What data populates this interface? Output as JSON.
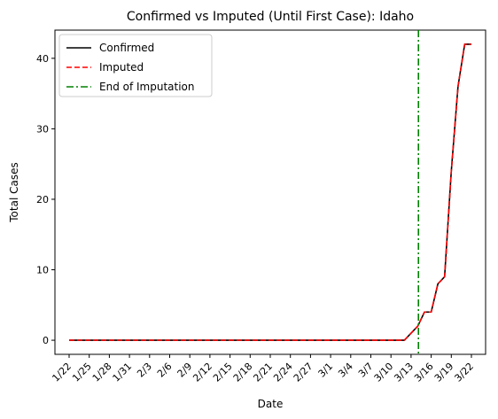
{
  "chart_data": {
    "type": "line",
    "title": "Confirmed vs Imputed (Until First Case): Idaho",
    "xlabel": "Date",
    "ylabel": "Total Cases",
    "ylim": [
      -2,
      44
    ],
    "yticks": [
      0,
      10,
      20,
      30,
      40
    ],
    "grid": false,
    "legend_position": "top-left",
    "x": [
      "1/22",
      "1/23",
      "1/24",
      "1/25",
      "1/26",
      "1/27",
      "1/28",
      "1/29",
      "1/30",
      "1/31",
      "2/1",
      "2/2",
      "2/3",
      "2/4",
      "2/5",
      "2/6",
      "2/7",
      "2/8",
      "2/9",
      "2/10",
      "2/11",
      "2/12",
      "2/13",
      "2/14",
      "2/15",
      "2/16",
      "2/17",
      "2/18",
      "2/19",
      "2/20",
      "2/21",
      "2/22",
      "2/23",
      "2/24",
      "2/25",
      "2/26",
      "2/27",
      "2/28",
      "2/29",
      "3/1",
      "3/2",
      "3/3",
      "3/4",
      "3/5",
      "3/6",
      "3/7",
      "3/8",
      "3/9",
      "3/10",
      "3/11",
      "3/12",
      "3/13",
      "3/14",
      "3/15",
      "3/16",
      "3/17",
      "3/18",
      "3/19",
      "3/20",
      "3/21",
      "3/22"
    ],
    "xtick_labels": [
      "1/22",
      "1/25",
      "1/28",
      "1/31",
      "2/3",
      "2/6",
      "2/9",
      "2/12",
      "2/15",
      "2/18",
      "2/21",
      "2/24",
      "2/27",
      "3/1",
      "3/4",
      "3/7",
      "3/10",
      "3/13",
      "3/16",
      "3/19",
      "3/22"
    ],
    "series": [
      {
        "name": "Confirmed",
        "color": "#000000",
        "style": "solid",
        "values": [
          0,
          0,
          0,
          0,
          0,
          0,
          0,
          0,
          0,
          0,
          0,
          0,
          0,
          0,
          0,
          0,
          0,
          0,
          0,
          0,
          0,
          0,
          0,
          0,
          0,
          0,
          0,
          0,
          0,
          0,
          0,
          0,
          0,
          0,
          0,
          0,
          0,
          0,
          0,
          0,
          0,
          0,
          0,
          0,
          0,
          0,
          0,
          0,
          0,
          0,
          0,
          1,
          2,
          4,
          4,
          8,
          9,
          24,
          36,
          42,
          42
        ]
      },
      {
        "name": "Imputed",
        "color": "#ff0000",
        "style": "dashed",
        "values": [
          0,
          0,
          0,
          0,
          0,
          0,
          0,
          0,
          0,
          0,
          0,
          0,
          0,
          0,
          0,
          0,
          0,
          0,
          0,
          0,
          0,
          0,
          0,
          0,
          0,
          0,
          0,
          0,
          0,
          0,
          0,
          0,
          0,
          0,
          0,
          0,
          0,
          0,
          0,
          0,
          0,
          0,
          0,
          0,
          0,
          0,
          0,
          0,
          0,
          0,
          0,
          1,
          2,
          4,
          4,
          8,
          9,
          24,
          36,
          42,
          42
        ]
      }
    ],
    "vline": {
      "name": "End of Imputation",
      "color": "#008000",
      "style": "dashdot",
      "x_index": 52.1
    }
  }
}
